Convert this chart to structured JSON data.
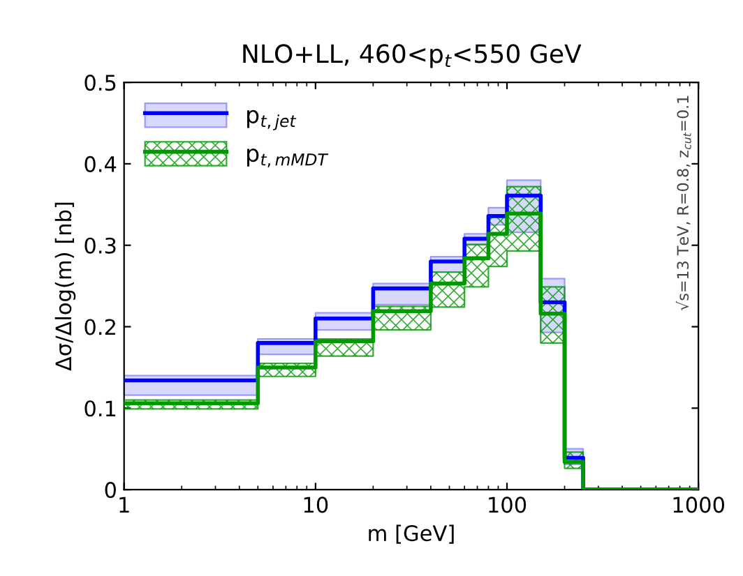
{
  "chart_data": {
    "type": "step",
    "title": "NLO+LL, 460<p$_{t}$<550 GeV",
    "xlabel": "m [GeV]",
    "ylabel": "Δσ/Δlog(m) [nb]",
    "annotations": [
      "√s=13 TeV, R=0.8, z$_{cut}$=0.1"
    ],
    "x": [
      1,
      5,
      10,
      20,
      40,
      60,
      80,
      100,
      150,
      200,
      250,
      1000
    ],
    "series": [
      {
        "name": "p$_{t,jet}$",
        "color": "#0000ff",
        "values": [
          0.134,
          0.18,
          0.21,
          0.247,
          0.28,
          0.308,
          0.336,
          0.361,
          0.23,
          0.039,
          0,
          0
        ],
        "lower": [
          0.116,
          0.166,
          0.196,
          0.227,
          0.267,
          0.301,
          0.325,
          0.316,
          0.193,
          0.031,
          0,
          0
        ],
        "upper": [
          0.14,
          0.185,
          0.217,
          0.253,
          0.286,
          0.314,
          0.346,
          0.38,
          0.259,
          0.05,
          0,
          0
        ]
      },
      {
        "name": "p$_{t,mMDT}$",
        "color": "#009900",
        "values": [
          0.106,
          0.15,
          0.182,
          0.219,
          0.253,
          0.284,
          0.314,
          0.339,
          0.216,
          0.034,
          0,
          0
        ],
        "lower": [
          0.099,
          0.139,
          0.164,
          0.196,
          0.224,
          0.249,
          0.274,
          0.293,
          0.18,
          0.026,
          0,
          0
        ],
        "upper": [
          0.11,
          0.155,
          0.185,
          0.225,
          0.267,
          0.301,
          0.334,
          0.372,
          0.249,
          0.046,
          0,
          0
        ]
      }
    ],
    "log": "x",
    "xlim": [
      1,
      1000
    ],
    "xticks": [
      1,
      10,
      100,
      1000
    ],
    "ylim": [
      0,
      0.5
    ],
    "yticks": [
      0,
      0.1,
      0.2,
      0.3,
      0.4,
      0.5
    ],
    "legend": "top left"
  }
}
